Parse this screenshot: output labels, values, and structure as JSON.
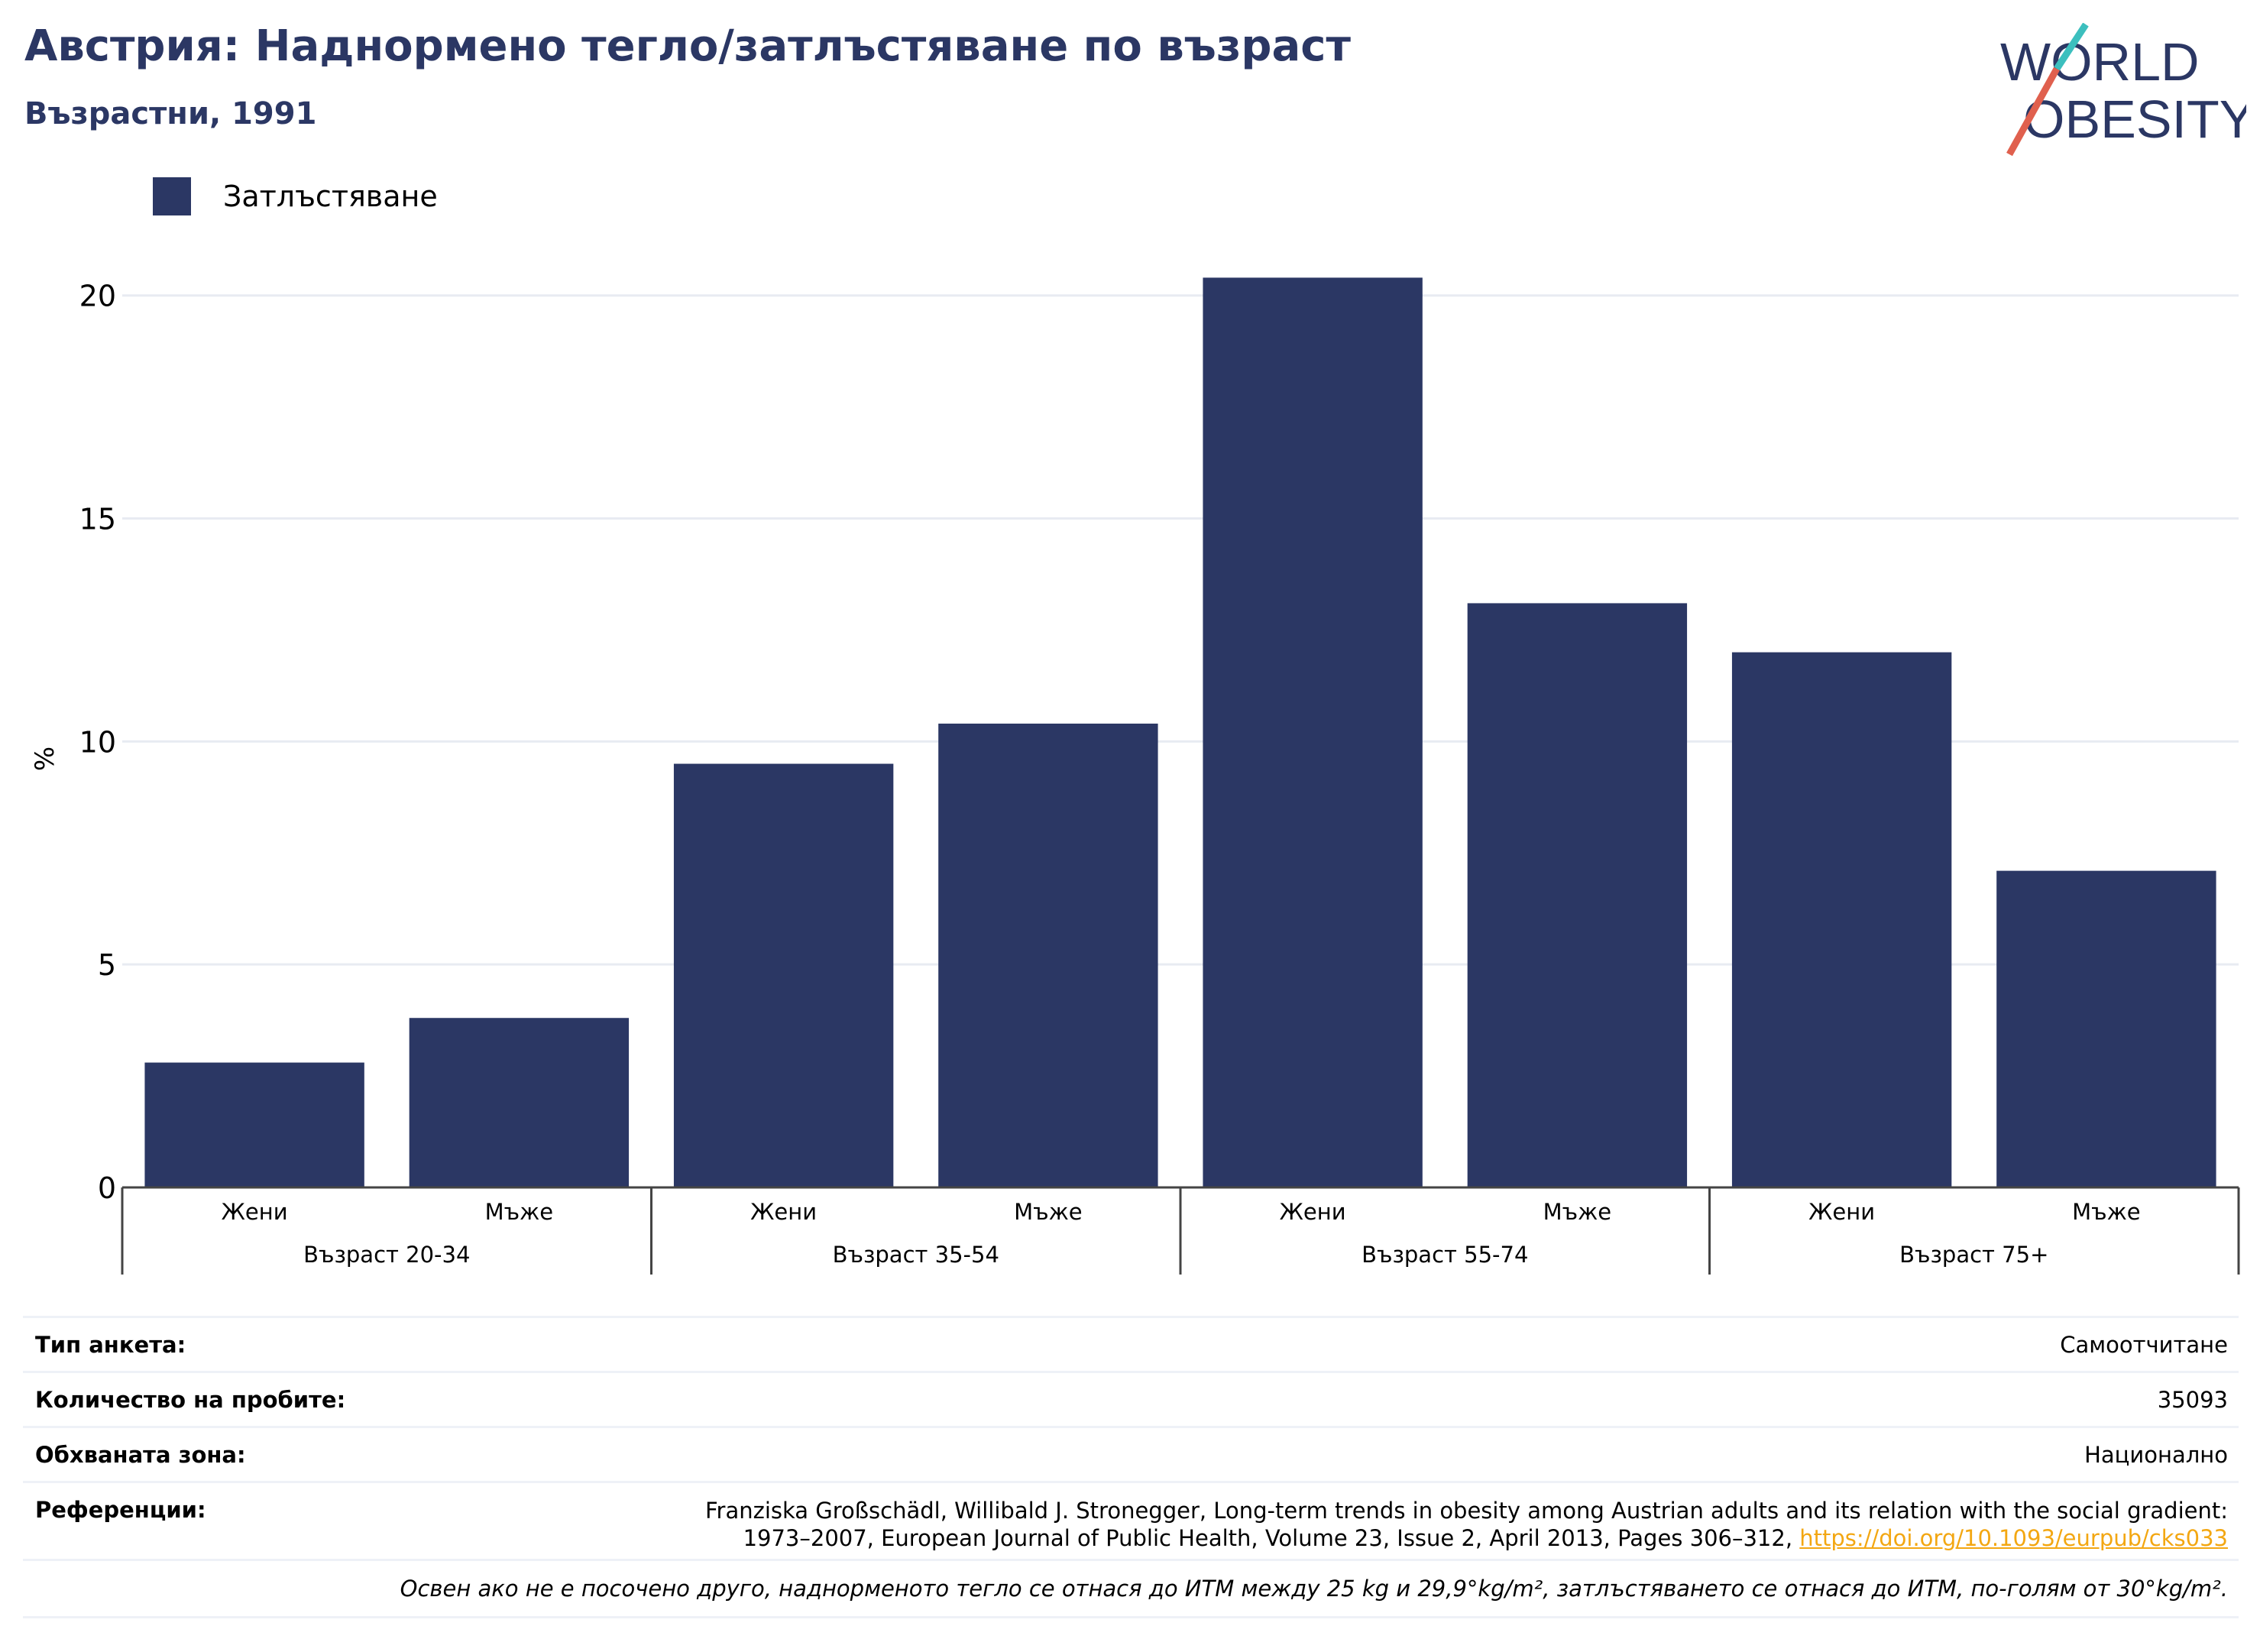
{
  "header": {
    "title": "Австрия: Наднормено тегло/затлъстяване по възраст",
    "subtitle": "Възрастни, 1991"
  },
  "logo": {
    "line1": "WORLD",
    "line2": "OBESITY",
    "colors": {
      "navy": "#2b3764",
      "teal": "#3cbfbe",
      "coral": "#e0604e"
    }
  },
  "legend": {
    "label": "Затлъстяване",
    "color": "#2b3764"
  },
  "chart_data": {
    "type": "bar",
    "ylabel": "%",
    "ylim": [
      0,
      22
    ],
    "yticks": [
      0,
      5,
      10,
      15,
      20
    ],
    "grid": true,
    "legend_position": "top-left",
    "bar_color": "#2b3764",
    "groups": [
      "Възраст 20-34",
      "Възраст 35-54",
      "Възраст 55-74",
      "Възраст 75+"
    ],
    "categories": [
      "Жени",
      "Мъже",
      "Жени",
      "Мъже",
      "Жени",
      "Мъже",
      "Жени",
      "Мъже"
    ],
    "series": [
      {
        "name": "Затлъстяване",
        "values": [
          2.8,
          3.8,
          9.5,
          10.4,
          20.4,
          13.1,
          12.0,
          7.1
        ]
      }
    ]
  },
  "info": {
    "survey_type": {
      "label": "Тип анкета:",
      "value": "Самоотчитане"
    },
    "sample_size": {
      "label": "Количество на пробите:",
      "value": "35093"
    },
    "area": {
      "label": "Обхваната зона:",
      "value": "Национално"
    },
    "references": {
      "label": "Референции:",
      "line1": "Franziska Großschädl, Willibald J. Stronegger, Long-term trends in obesity among Austrian adults and its relation with the social gradient:",
      "line2": "1973–2007, European Journal of Public Health, Volume 23, Issue 2, April 2013, Pages 306–312,",
      "link": "https://doi.org/10.1093/eurpub/cks033",
      "link_color": "#f3a712"
    },
    "note": "Освен ако не е посочено друго, наднорменото тегло се отнася до ИТМ между 25 kg и 29,9°kg/m², затлъстяването се отнася до ИТМ, по-голям от 30°kg/m²."
  }
}
